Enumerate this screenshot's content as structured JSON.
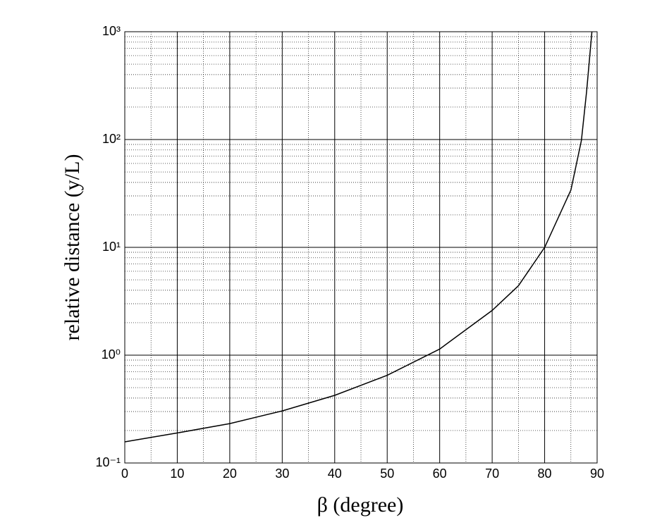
{
  "chart_data": {
    "type": "line",
    "x_label": "β (degree)",
    "y_label": "relative distance  (y/L)",
    "x": [
      0,
      10,
      20,
      30,
      40,
      50,
      60,
      70,
      75,
      80,
      85,
      87,
      88,
      89
    ],
    "series": [
      {
        "color": "#000000",
        "values": [
          0.157,
          0.19,
          0.232,
          0.304,
          0.424,
          0.65,
          1.14,
          2.6,
          4.4,
          10,
          34,
          98,
          280,
          1000
        ]
      }
    ],
    "xlim": [
      0,
      90
    ],
    "xticks": [
      0,
      10,
      20,
      30,
      40,
      50,
      60,
      70,
      80,
      90
    ],
    "xminor_ticks": [
      5,
      15,
      25,
      35,
      45,
      55,
      65,
      75,
      85
    ],
    "ylim": [
      0.1,
      1000
    ],
    "y_scale": "log",
    "yticks": [
      {
        "value": 0.1,
        "label": "10⁻¹"
      },
      {
        "value": 1,
        "label": "10⁰"
      },
      {
        "value": 10,
        "label": "10¹"
      },
      {
        "value": 100,
        "label": "10²"
      },
      {
        "value": 1000,
        "label": "10³"
      }
    ],
    "yminor_ticks": [
      0.2,
      0.3,
      0.4,
      0.5,
      0.6,
      0.7,
      0.8,
      0.9,
      2,
      3,
      4,
      5,
      6,
      7,
      8,
      9,
      20,
      30,
      40,
      50,
      60,
      70,
      80,
      90,
      200,
      300,
      400,
      500,
      600,
      700,
      800,
      900
    ],
    "grid": true
  }
}
